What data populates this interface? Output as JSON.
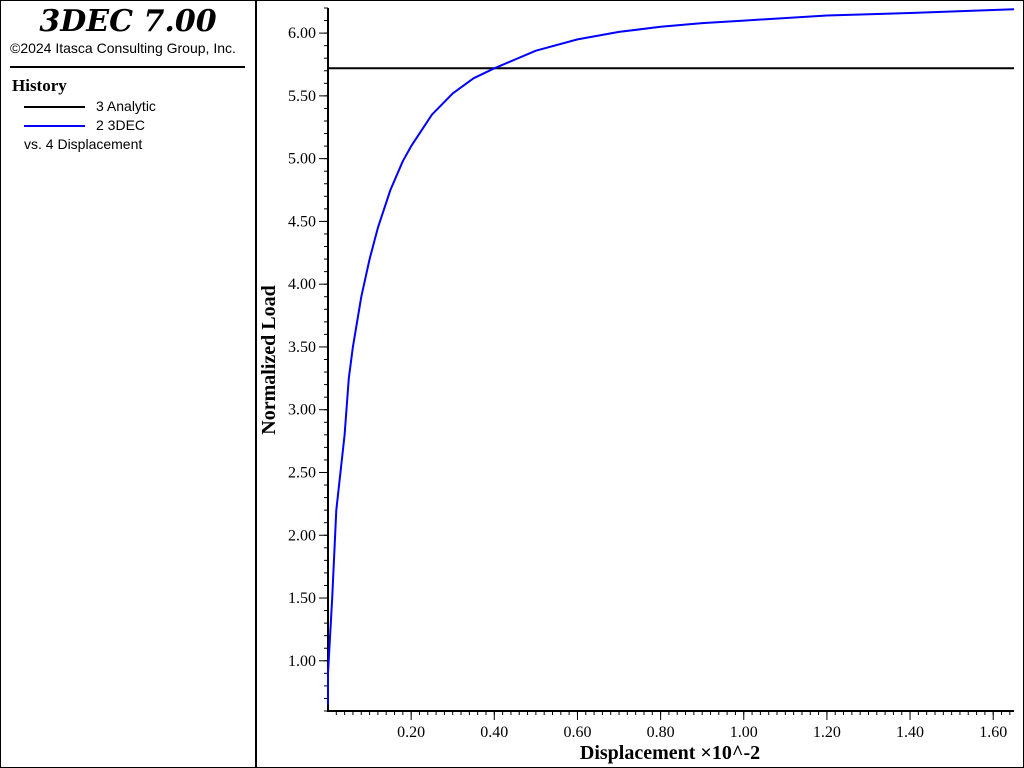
{
  "header": {
    "app_title": "3DEC 7.00",
    "copyright": "©2024 Itasca Consulting Group, Inc."
  },
  "legend": {
    "title": "History",
    "items": [
      {
        "label": "3 Analytic",
        "color": "#000000"
      },
      {
        "label": "2 3DEC",
        "color": "#0000ff"
      }
    ],
    "vs_label": "vs. 4 Displacement"
  },
  "chart_data": {
    "type": "line",
    "xlabel": "Displacement ×10^-2",
    "ylabel": "Normalized Load",
    "xlim": [
      0.0,
      1.65
    ],
    "ylim": [
      0.6,
      6.2
    ],
    "x_ticks": [
      0.2,
      0.4,
      0.6,
      0.8,
      1.0,
      1.2,
      1.4,
      1.6
    ],
    "y_ticks": [
      1.0,
      1.5,
      2.0,
      2.5,
      3.0,
      3.5,
      4.0,
      4.5,
      5.0,
      5.5,
      6.0
    ],
    "x_tick_labels": [
      "0.20",
      "0.40",
      "0.60",
      "0.80",
      "1.00",
      "1.20",
      "1.40",
      "1.60"
    ],
    "y_tick_labels": [
      "1.00",
      "1.50",
      "2.00",
      "2.50",
      "3.00",
      "3.50",
      "4.00",
      "4.50",
      "5.00",
      "5.50",
      "6.00"
    ],
    "grid": false,
    "legend_position": "left-panel",
    "series": [
      {
        "name": "3 Analytic",
        "color": "#000000",
        "x": [
          0.0,
          1.65
        ],
        "y": [
          5.72,
          5.72
        ]
      },
      {
        "name": "2 3DEC",
        "color": "#0000ff",
        "x": [
          0.0,
          0.0,
          0.01,
          0.02,
          0.04,
          0.05,
          0.06,
          0.08,
          0.1,
          0.12,
          0.15,
          0.18,
          0.2,
          0.25,
          0.3,
          0.35,
          0.4,
          0.45,
          0.5,
          0.6,
          0.7,
          0.8,
          0.9,
          1.0,
          1.2,
          1.4,
          1.65
        ],
        "y": [
          0.65,
          0.9,
          1.5,
          2.2,
          2.8,
          3.25,
          3.5,
          3.9,
          4.2,
          4.45,
          4.75,
          4.98,
          5.1,
          5.35,
          5.52,
          5.64,
          5.72,
          5.79,
          5.86,
          5.95,
          6.01,
          6.05,
          6.08,
          6.1,
          6.14,
          6.16,
          6.19
        ]
      }
    ]
  }
}
